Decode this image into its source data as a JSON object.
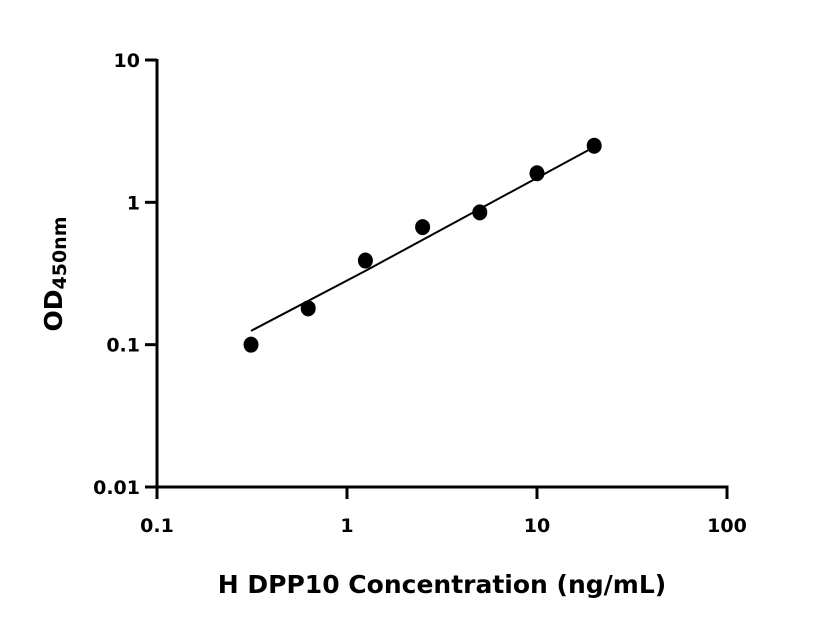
{
  "chart_data": {
    "type": "scatter",
    "title": "",
    "xlabel": "H DPP10 Concentration (ng/mL)",
    "ylabel": "OD",
    "ylabel_subscript": "450nm",
    "x_scale": "log",
    "y_scale": "log",
    "xlim": [
      0.1,
      100
    ],
    "ylim": [
      0.01,
      10
    ],
    "x_ticks": [
      "0.1",
      "1",
      "10",
      "100"
    ],
    "y_ticks": [
      "0.01",
      "0.1",
      "1",
      "10"
    ],
    "grid": false,
    "series": [
      {
        "type": "scatter",
        "x": [
          0.3125,
          0.625,
          1.25,
          2.5,
          5,
          10,
          20
        ],
        "y": [
          0.1,
          0.18,
          0.39,
          0.67,
          0.85,
          1.6,
          2.5
        ]
      },
      {
        "type": "line",
        "x": [
          0.3125,
          1.25,
          5,
          20
        ],
        "y": [
          0.125,
          0.33,
          0.9,
          2.45
        ]
      }
    ],
    "colors": {
      "marks": "#000000"
    }
  }
}
